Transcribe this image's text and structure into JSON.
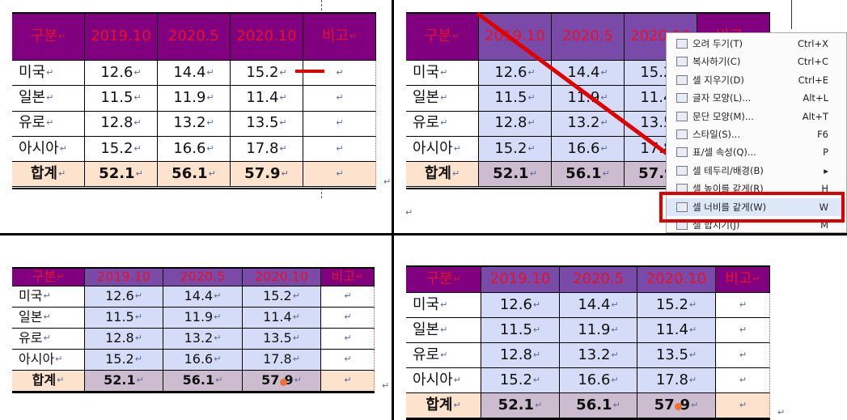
{
  "table": {
    "header": [
      "구분",
      "2019.10",
      "2020.5",
      "2020.10",
      "비고"
    ],
    "rows": [
      [
        "미국",
        "12.6",
        "14.4",
        "15.2",
        ""
      ],
      [
        "일본",
        "11.5",
        "11.9",
        "11.4",
        ""
      ],
      [
        "유로",
        "12.8",
        "13.2",
        "13.5",
        ""
      ],
      [
        "아시아",
        "15.2",
        "16.6",
        "17.8",
        ""
      ],
      [
        "합계",
        "52.1",
        "56.1",
        "57.9",
        ""
      ]
    ]
  },
  "paragraph_mark": "↵",
  "context_menu": {
    "items": [
      {
        "label": "오려 두기(T)",
        "shortcut": "Ctrl+X"
      },
      {
        "label": "복사하기(C)",
        "shortcut": "Ctrl+C"
      },
      {
        "label": "셀 지우기(D)",
        "shortcut": "Ctrl+E"
      },
      {
        "label": "글자 모양(L)...",
        "shortcut": "Alt+L"
      },
      {
        "label": "문단 모양(M)...",
        "shortcut": "Alt+T"
      },
      {
        "label": "스타일(S)...",
        "shortcut": "F6"
      },
      {
        "label": "표/셀 속성(Q)...",
        "shortcut": "P"
      },
      {
        "label": "셀 테두리/배경(B)",
        "shortcut": "▸"
      },
      {
        "label": "셀 높이를 같게(R)",
        "shortcut": "H"
      },
      {
        "label": "셀 너비를 같게(W)",
        "shortcut": "W"
      },
      {
        "label": "셀 합치기(J)",
        "shortcut": "M"
      }
    ]
  }
}
